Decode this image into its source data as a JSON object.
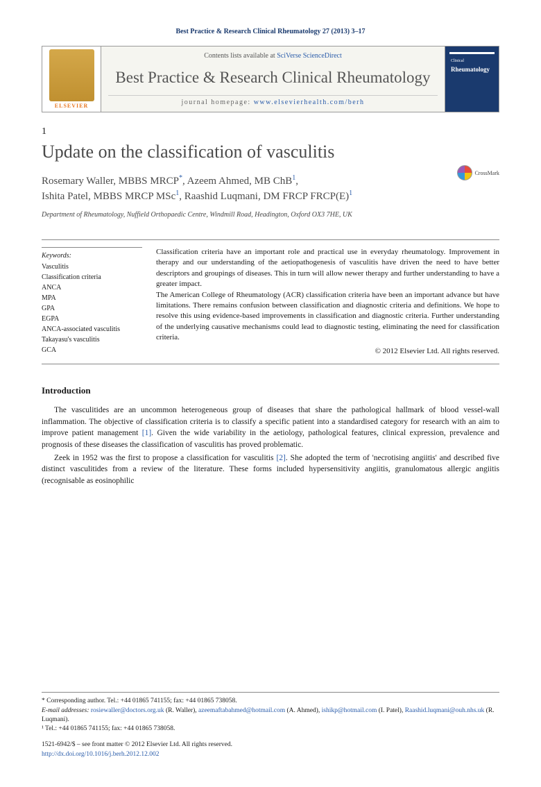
{
  "journal_ref": "Best Practice & Research Clinical Rheumatology 27 (2013) 3–17",
  "header": {
    "contents_prefix": "Contents lists available at ",
    "contents_link": "SciVerse ScienceDirect",
    "journal_title": "Best Practice & Research Clinical Rheumatology",
    "homepage_prefix": "journal homepage: ",
    "homepage_url": "www.elsevierhealth.com/berh",
    "elsevier": "ELSEVIER",
    "cover_label": "Clinical",
    "cover_title": "Rheumatology"
  },
  "article": {
    "num": "1",
    "title": "Update on the classification of vasculitis",
    "crossmark": "CrossMark"
  },
  "authors": {
    "a1_name": "Rosemary Waller, MBBS MRCP",
    "a1_sym": "*",
    "a2_name": "Azeem Ahmed, MB ChB",
    "a2_sym": "1",
    "a3_name": "Ishita Patel, MBBS MRCP MSc",
    "a3_sym": "1",
    "a4_name": "Raashid Luqmani, DM FRCP FRCP(E)",
    "a4_sym": "1"
  },
  "affiliation": "Department of Rheumatology, Nuffield Orthopaedic Centre, Windmill Road, Headington, Oxford OX3 7HE, UK",
  "keywords": {
    "head": "Keywords:",
    "k1": "Vasculitis",
    "k2": "Classification criteria",
    "k3": "ANCA",
    "k4": "MPA",
    "k5": "GPA",
    "k6": "EGPA",
    "k7": "ANCA-associated vasculitis",
    "k8": "Takayasu's vasculitis",
    "k9": "GCA"
  },
  "abstract": {
    "p1": "Classification criteria have an important role and practical use in everyday rheumatology. Improvement in therapy and our understanding of the aetiopathogenesis of vasculitis have driven the need to have better descriptors and groupings of diseases. This in turn will allow newer therapy and further understanding to have a greater impact.",
    "p2": "The American College of Rheumatology (ACR) classification criteria have been an important advance but have limitations. There remains confusion between classification and diagnostic criteria and definitions. We hope to resolve this using evidence-based improvements in classification and diagnostic criteria. Further understanding of the underlying causative mechanisms could lead to diagnostic testing, eliminating the need for classification criteria.",
    "copyright": "© 2012 Elsevier Ltd. All rights reserved."
  },
  "intro": {
    "head": "Introduction",
    "p1a": "The vasculitides are an uncommon heterogeneous group of diseases that share the pathological hallmark of blood vessel-wall inflammation. The objective of classification criteria is to classify a specific patient into a standardised category for research with an aim to improve patient management ",
    "p1_cite": "[1]",
    "p1b": ". Given the wide variability in the aetiology, pathological features, clinical expression, prevalence and prognosis of these diseases the classification of vasculitis has proved problematic.",
    "p2a": "Zeek in 1952 was the first to propose a classification for vasculitis ",
    "p2_cite": "[2]",
    "p2b": ". She adopted the term of 'necrotising angiitis' and described five distinct vasculitides from a review of the literature. These forms included hypersensitivity angiitis, granulomatous allergic angiitis (recognisable as eosinophilic"
  },
  "footer": {
    "corr": "* Corresponding author. Tel.: +44 01865 741155; fax: +44 01865 738058.",
    "email_label": "E-mail addresses: ",
    "e1": "rosiewaller@doctors.org.uk",
    "e1_who": " (R. Waller), ",
    "e2": "azeemaftabahmed@hotmail.com",
    "e2_who": " (A. Ahmed), ",
    "e3": "ishikp@hotmail.com",
    "e3_who": " (I. Patel), ",
    "e4": "Raashid.luqmani@ouh.nhs.uk",
    "e4_who": " (R. Luqmani).",
    "note1": "¹ Tel.: +44 01865 741155; fax: +44 01865 738058.",
    "issn": "1521-6942/$ – see front matter © 2012 Elsevier Ltd. All rights reserved.",
    "doi": "http://dx.doi.org/10.1016/j.berh.2012.12.002"
  }
}
